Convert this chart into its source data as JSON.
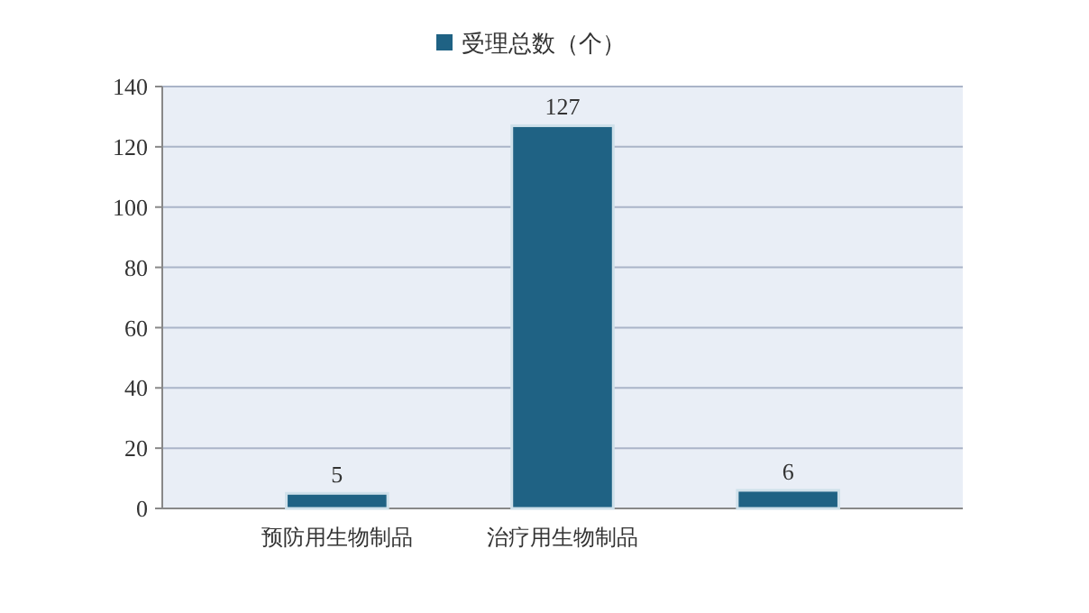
{
  "chart_data": {
    "type": "bar",
    "categories": [
      "预防用生物制品",
      "治疗用生物制品",
      null
    ],
    "series": [
      {
        "name": "受理总数（个）",
        "color": "#1f6284",
        "values": [
          5,
          127,
          6
        ]
      }
    ],
    "ylim": [
      0,
      140
    ],
    "yticks": [
      0,
      20,
      40,
      60,
      80,
      100,
      120,
      140
    ],
    "grid": "y",
    "legend": "top",
    "data_labels": true
  }
}
